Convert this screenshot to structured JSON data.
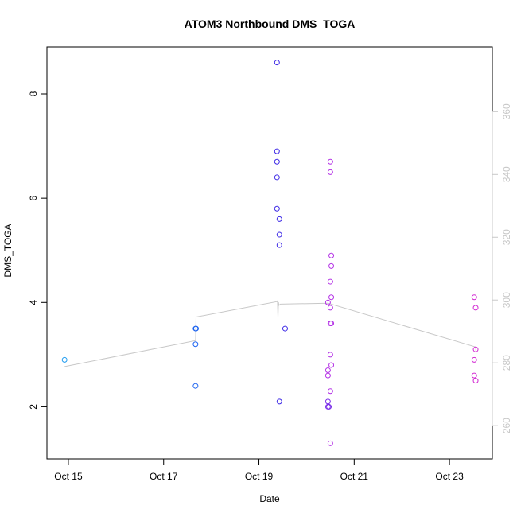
{
  "chart_data": {
    "type": "scatter",
    "title": "ATOM3 Northbound DMS_TOGA",
    "xlabel": "Date",
    "ylabel": "DMS_TOGA",
    "x_ticks": [
      "Oct 15",
      "Oct 17",
      "Oct 19",
      "Oct 21",
      "Oct 23"
    ],
    "x_tick_days": [
      15,
      17,
      19,
      21,
      23
    ],
    "xlim_days": [
      14.55,
      23.9
    ],
    "y_ticks": [
      2,
      4,
      6,
      8
    ],
    "ylim": [
      1.0,
      8.9
    ],
    "y2_ticks": [
      260,
      280,
      300,
      320,
      340,
      360
    ],
    "y2lim": [
      249.4,
      380.6
    ],
    "y2_color": "#c8c8c8",
    "grid": false,
    "points": [
      {
        "x": 14.92,
        "y": 2.9,
        "color": "#1e9bf0"
      },
      {
        "x": 17.67,
        "y": 3.5,
        "color": "#1e64f0"
      },
      {
        "x": 17.68,
        "y": 3.5,
        "color": "#1e64f0"
      },
      {
        "x": 17.67,
        "y": 3.2,
        "color": "#1e64f0"
      },
      {
        "x": 17.67,
        "y": 2.4,
        "color": "#1e64f0"
      },
      {
        "x": 19.38,
        "y": 8.6,
        "color": "#3c28e6"
      },
      {
        "x": 19.38,
        "y": 6.9,
        "color": "#3c28e6"
      },
      {
        "x": 19.38,
        "y": 6.7,
        "color": "#3c28e6"
      },
      {
        "x": 19.38,
        "y": 6.4,
        "color": "#3c28e6"
      },
      {
        "x": 19.38,
        "y": 5.8,
        "color": "#3c28e6"
      },
      {
        "x": 19.43,
        "y": 5.6,
        "color": "#3c28e6"
      },
      {
        "x": 19.43,
        "y": 5.3,
        "color": "#3c28e6"
      },
      {
        "x": 19.43,
        "y": 5.1,
        "color": "#3c28e6"
      },
      {
        "x": 19.55,
        "y": 3.5,
        "color": "#3c28e6"
      },
      {
        "x": 19.43,
        "y": 2.1,
        "color": "#3c28e6"
      },
      {
        "x": 20.5,
        "y": 6.7,
        "color": "#b432e6"
      },
      {
        "x": 20.5,
        "y": 6.5,
        "color": "#b432e6"
      },
      {
        "x": 20.52,
        "y": 4.9,
        "color": "#b432e6"
      },
      {
        "x": 20.52,
        "y": 4.7,
        "color": "#b432e6"
      },
      {
        "x": 20.5,
        "y": 4.4,
        "color": "#b432e6"
      },
      {
        "x": 20.52,
        "y": 4.1,
        "color": "#b432e6"
      },
      {
        "x": 20.45,
        "y": 4.0,
        "color": "#b432e6"
      },
      {
        "x": 20.5,
        "y": 3.9,
        "color": "#b432e6"
      },
      {
        "x": 20.5,
        "y": 3.6,
        "color": "#b432e6"
      },
      {
        "x": 20.52,
        "y": 3.6,
        "color": "#b432e6"
      },
      {
        "x": 20.5,
        "y": 3.0,
        "color": "#b432e6"
      },
      {
        "x": 20.52,
        "y": 2.8,
        "color": "#b432e6"
      },
      {
        "x": 20.45,
        "y": 2.7,
        "color": "#b432e6"
      },
      {
        "x": 20.45,
        "y": 2.6,
        "color": "#b432e6"
      },
      {
        "x": 20.5,
        "y": 2.3,
        "color": "#b432e6"
      },
      {
        "x": 20.45,
        "y": 2.1,
        "color": "#7a2ee8"
      },
      {
        "x": 20.45,
        "y": 2.0,
        "color": "#7a2ee8"
      },
      {
        "x": 20.47,
        "y": 2.0,
        "color": "#7a2ee8"
      },
      {
        "x": 20.5,
        "y": 1.3,
        "color": "#b432e6"
      },
      {
        "x": 23.52,
        "y": 4.1,
        "color": "#d228d2"
      },
      {
        "x": 23.55,
        "y": 3.9,
        "color": "#d228d2"
      },
      {
        "x": 23.55,
        "y": 3.1,
        "color": "#d228d2"
      },
      {
        "x": 23.52,
        "y": 2.9,
        "color": "#d228d2"
      },
      {
        "x": 23.52,
        "y": 2.6,
        "color": "#d228d2"
      },
      {
        "x": 23.55,
        "y": 2.5,
        "color": "#d228d2"
      }
    ],
    "secondary_line": {
      "color": "#c8c8c8",
      "axis": "right",
      "x": [
        14.92,
        17.67,
        17.68,
        19.38,
        19.39,
        19.4,
        19.41,
        19.42,
        19.45,
        20.45,
        23.52,
        23.55,
        23.56
      ],
      "y": [
        278.8,
        287.1,
        294.6,
        299.5,
        299.7,
        294.5,
        299.3,
        298.3,
        298.7,
        299.0,
        285.2,
        285.0,
        282.9
      ]
    }
  }
}
